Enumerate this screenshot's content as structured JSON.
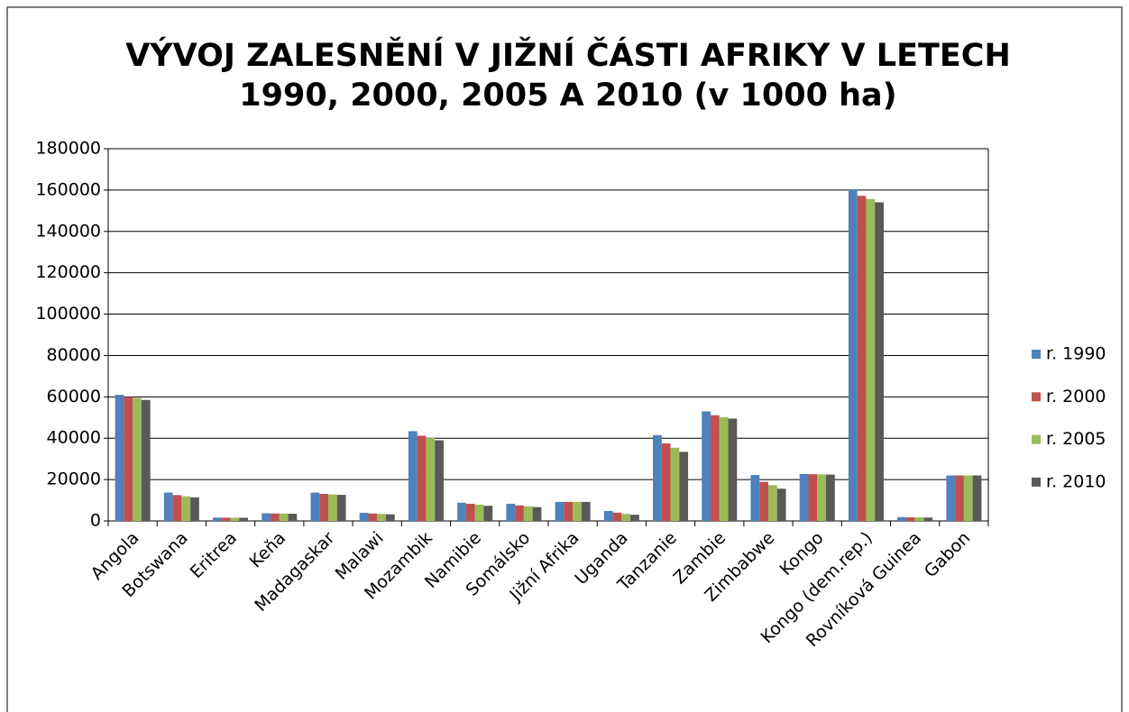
{
  "chart_data": {
    "type": "bar",
    "title": "VÝVOJ ZALESNĚNÍ V JIŽNÍ ČÁSTI AFRIKY V LETECH 1990, 2000, 2005 A 2010 (v 1000 ha)",
    "categories": [
      "Angola",
      "Botswana",
      "Eritrea",
      "Keňa",
      "Madagaskar",
      "Malawi",
      "Mozambik",
      "Namibie",
      "Somálsko",
      "Jižní Afrika",
      "Uganda",
      "Tanzanie",
      "Zambie",
      "Zimbabwe",
      "Kongo",
      "Kongo (dem.rep.)",
      "Rovníková Guinea",
      "Gabon"
    ],
    "series": [
      {
        "name": "r. 1990",
        "color": "#4f81bd",
        "values": [
          61000,
          13700,
          1600,
          3700,
          13700,
          3900,
          43400,
          8800,
          8300,
          9200,
          4800,
          41500,
          53000,
          22200,
          22700,
          160400,
          1860,
          22000
        ]
      },
      {
        "name": "r. 2000",
        "color": "#c0504d",
        "values": [
          60000,
          12500,
          1580,
          3600,
          13100,
          3600,
          41200,
          8300,
          7500,
          9200,
          4000,
          37500,
          51100,
          18900,
          22600,
          157200,
          1750,
          22000
        ]
      },
      {
        "name": "r. 2005",
        "color": "#9bbb59",
        "values": [
          59500,
          11900,
          1560,
          3550,
          12800,
          3400,
          40100,
          7900,
          7100,
          9200,
          3400,
          35400,
          50200,
          17300,
          22500,
          155700,
          1690,
          22000
        ]
      },
      {
        "name": "r. 2010",
        "color": "#595959",
        "values": [
          58500,
          11400,
          1530,
          3470,
          12600,
          3200,
          39000,
          7300,
          6700,
          9200,
          3000,
          33400,
          49500,
          15600,
          22400,
          154100,
          1630,
          22000
        ]
      }
    ],
    "ylim": [
      0,
      180000
    ],
    "yticks": [
      0,
      20000,
      40000,
      60000,
      80000,
      100000,
      120000,
      140000,
      160000,
      180000
    ],
    "grid": true,
    "legend": "right"
  }
}
